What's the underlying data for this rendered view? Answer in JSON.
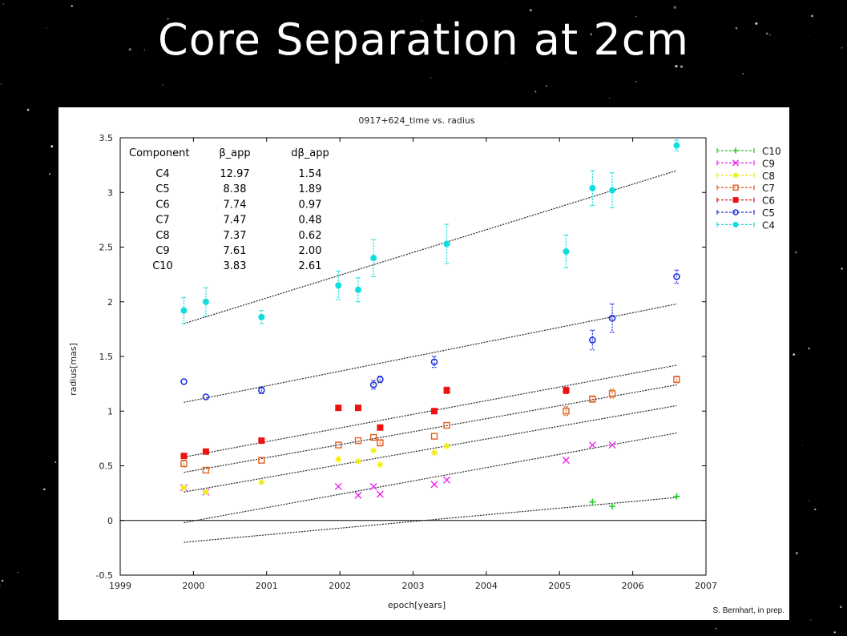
{
  "slide": {
    "title": "Core Separation at 2cm",
    "credit": "S. Bernhart, in prep."
  },
  "chart_data": {
    "type": "scatter",
    "title": "0917+624_time vs. radius",
    "xlabel": "epoch[years]",
    "ylabel": "radius[mas]",
    "xlim": [
      1999,
      2007
    ],
    "ylim": [
      -0.5,
      3.5
    ],
    "xticks": [
      1999,
      2000,
      2001,
      2002,
      2003,
      2004,
      2005,
      2006,
      2007
    ],
    "yticks": [
      -0.5,
      0,
      0.5,
      1,
      1.5,
      2,
      2.5,
      3,
      3.5
    ],
    "ytick_labels": [
      "-0.5",
      "0",
      "0.5",
      "1",
      "1.5",
      "2",
      "2.5",
      "3",
      "3.5"
    ],
    "legend_position": "top-right",
    "grid": false,
    "table": {
      "headers": [
        "Component",
        "β_app",
        "dβ_app"
      ],
      "rows": [
        [
          "C4",
          "12.97",
          "1.54"
        ],
        [
          "C5",
          "8.38",
          "1.89"
        ],
        [
          "C6",
          "7.74",
          "0.97"
        ],
        [
          "C7",
          "7.47",
          "0.48"
        ],
        [
          "C8",
          "7.37",
          "0.62"
        ],
        [
          "C9",
          "7.61",
          "2.00"
        ],
        [
          "C10",
          "3.83",
          "2.61"
        ]
      ]
    },
    "series": [
      {
        "name": "C10",
        "color": "#22cc22",
        "marker": "plus",
        "x": [
          2005.45,
          2005.72,
          2006.6
        ],
        "y": [
          0.17,
          0.13,
          0.22
        ],
        "err": [
          0.02,
          0.02,
          0.02
        ]
      },
      {
        "name": "C9",
        "color": "#ee22ee",
        "marker": "x",
        "x": [
          1999.87,
          2000.17,
          2001.98,
          2002.25,
          2002.46,
          2002.55,
          2003.29,
          2003.46,
          2005.09,
          2005.45,
          2005.72
        ],
        "y": [
          0.3,
          0.26,
          0.31,
          0.23,
          0.31,
          0.24,
          0.33,
          0.37,
          0.55,
          0.69,
          0.69
        ],
        "err": [
          0.02,
          0.02,
          0.02,
          0.02,
          0.02,
          0.02,
          0.02,
          0.02,
          0.02,
          0.02,
          0.02
        ]
      },
      {
        "name": "C8",
        "color": "#eeee00",
        "marker": "star",
        "x": [
          1999.87,
          2000.17,
          2000.93,
          2001.98,
          2002.25,
          2002.46,
          2002.55,
          2003.29,
          2003.46
        ],
        "y": [
          0.3,
          0.26,
          0.35,
          0.56,
          0.54,
          0.64,
          0.51,
          0.62,
          0.68
        ],
        "err": [
          0.02,
          0.02,
          0.02,
          0.02,
          0.02,
          0.02,
          0.02,
          0.02,
          0.02
        ]
      },
      {
        "name": "C7",
        "color": "#e06020",
        "marker": "square-open",
        "x": [
          1999.87,
          2000.17,
          2000.93,
          2001.98,
          2002.25,
          2002.46,
          2002.55,
          2003.29,
          2003.46,
          2005.09,
          2005.45,
          2005.72,
          2006.6
        ],
        "y": [
          0.52,
          0.46,
          0.55,
          0.69,
          0.73,
          0.76,
          0.71,
          0.77,
          0.87,
          1.0,
          1.11,
          1.16,
          1.29
        ],
        "err": [
          0.03,
          0.02,
          0.02,
          0.02,
          0.02,
          0.02,
          0.03,
          0.02,
          0.02,
          0.04,
          0.03,
          0.04,
          0.03
        ]
      },
      {
        "name": "C6",
        "color": "#ee1111",
        "marker": "square",
        "x": [
          1999.87,
          2000.17,
          2000.93,
          2001.98,
          2002.25,
          2002.55,
          2003.29,
          2003.46,
          2005.09
        ],
        "y": [
          0.59,
          0.63,
          0.73,
          1.03,
          1.03,
          0.85,
          1.0,
          1.19,
          1.19
        ],
        "err": [
          0.02,
          0.02,
          0.02,
          0.02,
          0.02,
          0.02,
          0.02,
          0.03,
          0.03
        ]
      },
      {
        "name": "C5",
        "color": "#2233dd",
        "marker": "circle-open",
        "x": [
          1999.87,
          2000.17,
          2000.93,
          2002.46,
          2002.55,
          2003.29,
          2005.45,
          2005.72,
          2006.6
        ],
        "y": [
          1.27,
          1.13,
          1.19,
          1.24,
          1.29,
          1.45,
          1.65,
          1.85,
          2.23
        ],
        "err": [
          0.02,
          0.02,
          0.03,
          0.04,
          0.03,
          0.05,
          0.09,
          0.13,
          0.06
        ]
      },
      {
        "name": "C4",
        "color": "#11dddd",
        "marker": "circle",
        "x": [
          1999.87,
          2000.17,
          2000.93,
          2001.98,
          2002.25,
          2002.46,
          2003.46,
          2005.09,
          2005.45,
          2005.72,
          2006.6
        ],
        "y": [
          1.92,
          2.0,
          1.86,
          2.15,
          2.11,
          2.4,
          2.53,
          2.46,
          3.04,
          3.02,
          3.43
        ],
        "err": [
          0.12,
          0.13,
          0.06,
          0.13,
          0.11,
          0.17,
          0.18,
          0.15,
          0.16,
          0.16,
          0.05
        ]
      }
    ],
    "fit_lines": [
      {
        "x": [
          1999.87,
          2006.6
        ],
        "y": [
          1.8,
          3.2
        ]
      },
      {
        "x": [
          1999.87,
          2006.6
        ],
        "y": [
          1.08,
          1.98
        ]
      },
      {
        "x": [
          1999.87,
          2006.6
        ],
        "y": [
          0.58,
          1.42
        ]
      },
      {
        "x": [
          1999.87,
          2006.6
        ],
        "y": [
          0.44,
          1.24
        ]
      },
      {
        "x": [
          1999.87,
          2006.6
        ],
        "y": [
          0.26,
          1.05
        ]
      },
      {
        "x": [
          1999.87,
          2006.6
        ],
        "y": [
          -0.02,
          0.8
        ]
      },
      {
        "x": [
          1999.87,
          2006.6
        ],
        "y": [
          -0.2,
          0.21
        ]
      }
    ]
  }
}
